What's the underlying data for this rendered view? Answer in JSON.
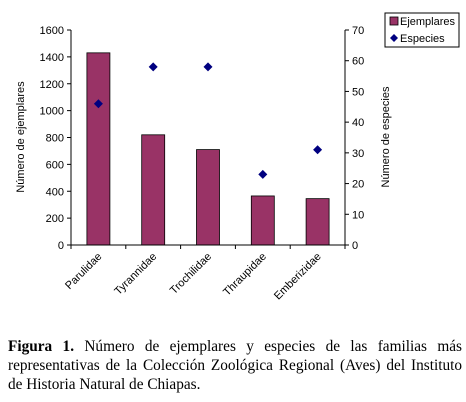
{
  "chart_data": {
    "type": "bar",
    "categories": [
      "Parulidae",
      "Tyrannidae",
      "Trochilidae",
      "Thraupidae",
      "Emberizidae"
    ],
    "series": [
      {
        "name": "Ejemplares",
        "kind": "bar",
        "axis": "left",
        "values": [
          1430,
          820,
          710,
          365,
          345
        ],
        "color": "#993366"
      },
      {
        "name": "Especies",
        "kind": "scatter",
        "axis": "right",
        "marker": "diamond",
        "values": [
          46,
          58,
          58,
          23,
          31
        ],
        "color": "#000080"
      }
    ],
    "ylabel": "Número de ejemplares",
    "y2label": "Número de especies",
    "ylim": [
      0,
      1600
    ],
    "yticks": [
      0,
      200,
      400,
      600,
      800,
      1000,
      1200,
      1400,
      1600
    ],
    "y2lim": [
      0,
      70
    ],
    "y2ticks": [
      0,
      10,
      20,
      30,
      40,
      50,
      60,
      70
    ],
    "grid": false,
    "legend_position": "top-right"
  },
  "caption": {
    "label": "Figura 1.",
    "text": "Número de ejemplares y especies de las familias más representativas de la Colección Zoológica Regional (Aves) del Instituto de Historia Natural de Chiapas."
  }
}
